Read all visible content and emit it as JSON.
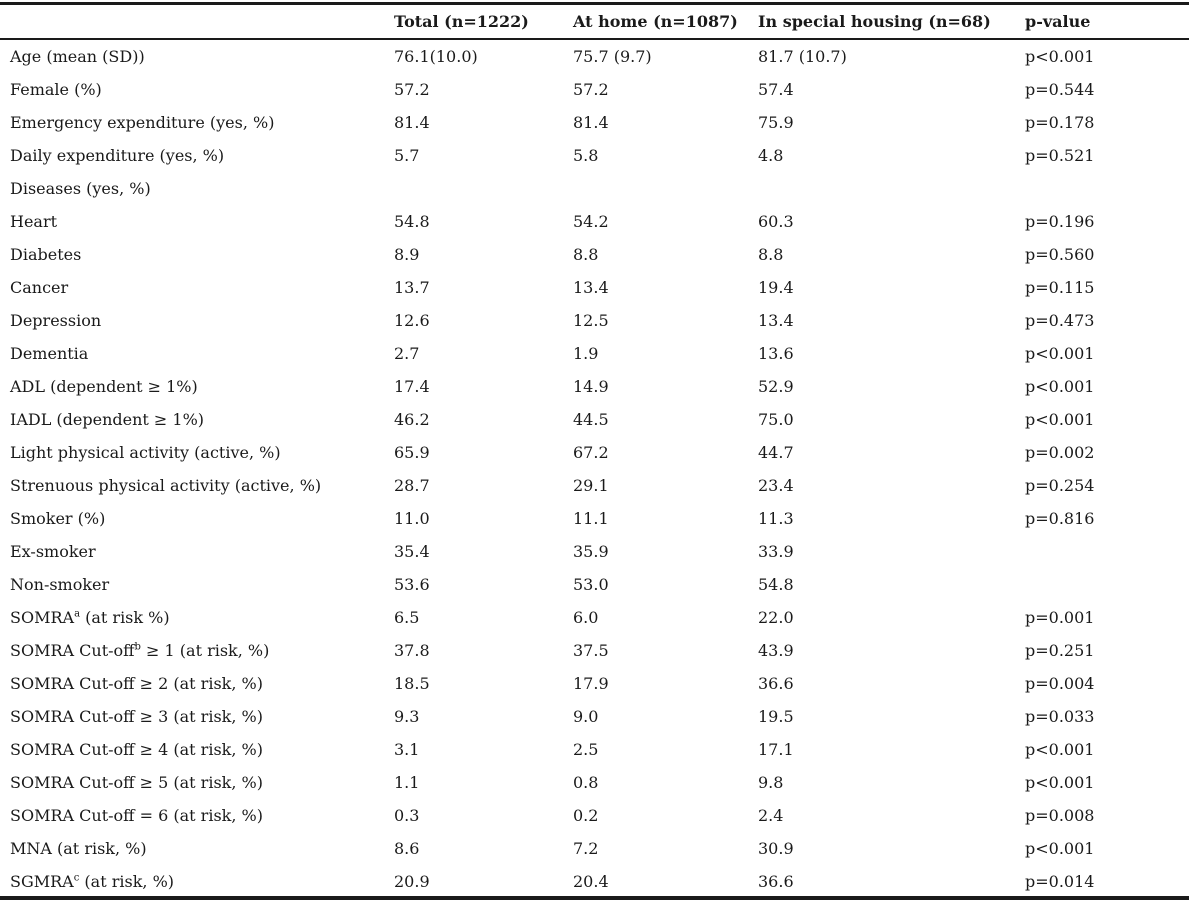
{
  "headers": [
    "",
    "Total (n=1222)",
    "At home (n=1087)",
    "In special housing (n=68)",
    "p-value"
  ],
  "rows": [
    {
      "label": "Age (mean (SD))",
      "sup": "",
      "label_rest": "",
      "total": "76.1(10.0)",
      "home": "75.7 (9.7)",
      "special": "81.7 (10.7)",
      "p": "p<0.001"
    },
    {
      "label": "Female (%)",
      "sup": "",
      "label_rest": "",
      "total": "57.2",
      "home": "57.2",
      "special": "57.4",
      "p": "p=0.544"
    },
    {
      "label": "Emergency expenditure (yes, %)",
      "sup": "",
      "label_rest": "",
      "total": "81.4",
      "home": "81.4",
      "special": "75.9",
      "p": "p=0.178"
    },
    {
      "label": "Daily expenditure (yes, %)",
      "sup": "",
      "label_rest": "",
      "total": "5.7",
      "home": "5.8",
      "special": "4.8",
      "p": "p=0.521"
    },
    {
      "label": "Diseases (yes, %)",
      "sup": "",
      "label_rest": "",
      "total": "",
      "home": "",
      "special": "",
      "p": ""
    },
    {
      "label": "Heart",
      "sup": "",
      "label_rest": "",
      "total": "54.8",
      "home": "54.2",
      "special": "60.3",
      "p": "p=0.196"
    },
    {
      "label": "Diabetes",
      "sup": "",
      "label_rest": "",
      "total": "8.9",
      "home": "8.8",
      "special": "8.8",
      "p": "p=0.560"
    },
    {
      "label": "Cancer",
      "sup": "",
      "label_rest": "",
      "total": "13.7",
      "home": "13.4",
      "special": "19.4",
      "p": "p=0.115"
    },
    {
      "label": "Depression",
      "sup": "",
      "label_rest": "",
      "total": "12.6",
      "home": "12.5",
      "special": "13.4",
      "p": "p=0.473"
    },
    {
      "label": "Dementia",
      "sup": "",
      "label_rest": "",
      "total": "2.7",
      "home": "1.9",
      "special": "13.6",
      "p": "p<0.001"
    },
    {
      "label": "ADL (dependent ≥ 1%)",
      "sup": "",
      "label_rest": "",
      "total": "17.4",
      "home": "14.9",
      "special": "52.9",
      "p": "p<0.001"
    },
    {
      "label": "IADL (dependent ≥ 1%)",
      "sup": "",
      "label_rest": "",
      "total": "46.2",
      "home": "44.5",
      "special": "75.0",
      "p": "p<0.001"
    },
    {
      "label": "Light physical activity (active, %)",
      "sup": "",
      "label_rest": "",
      "total": "65.9",
      "home": "67.2",
      "special": "44.7",
      "p": "p=0.002"
    },
    {
      "label": "Strenuous physical activity (active, %)",
      "sup": "",
      "label_rest": "",
      "total": "28.7",
      "home": "29.1",
      "special": "23.4",
      "p": "p=0.254"
    },
    {
      "label": "Smoker (%)",
      "sup": "",
      "label_rest": "",
      "total": "11.0",
      "home": "11.1",
      "special": "11.3",
      "p": "p=0.816"
    },
    {
      "label": "Ex-smoker",
      "sup": "",
      "label_rest": "",
      "total": "35.4",
      "home": "35.9",
      "special": "33.9",
      "p": ""
    },
    {
      "label": "Non-smoker",
      "sup": "",
      "label_rest": "",
      "total": "53.6",
      "home": "53.0",
      "special": "54.8",
      "p": ""
    },
    {
      "label": "SOMRA",
      "sup": "a",
      "label_rest": " (at risk %)",
      "total": "6.5",
      "home": "6.0",
      "special": "22.0",
      "p": "p=0.001"
    },
    {
      "label": "SOMRA Cut-off",
      "sup": "b",
      "label_rest": " ≥ 1 (at risk, %)",
      "total": "37.8",
      "home": "37.5",
      "special": "43.9",
      "p": "p=0.251"
    },
    {
      "label": "SOMRA Cut-off ≥ 2 (at risk, %)",
      "sup": "",
      "label_rest": "",
      "total": "18.5",
      "home": "17.9",
      "special": "36.6",
      "p": "p=0.004"
    },
    {
      "label": "SOMRA Cut-off ≥ 3 (at risk, %)",
      "sup": "",
      "label_rest": "",
      "total": "9.3",
      "home": "9.0",
      "special": "19.5",
      "p": "p=0.033"
    },
    {
      "label": "SOMRA Cut-off ≥ 4 (at risk, %)",
      "sup": "",
      "label_rest": "",
      "total": "3.1",
      "home": "2.5",
      "special": "17.1",
      "p": "p<0.001"
    },
    {
      "label": "SOMRA Cut-off ≥ 5 (at risk, %)",
      "sup": "",
      "label_rest": "",
      "total": "1.1",
      "home": "0.8",
      "special": "9.8",
      "p": "p<0.001"
    },
    {
      "label": "SOMRA Cut-off = 6 (at risk, %)",
      "sup": "",
      "label_rest": "",
      "total": "0.3",
      "home": "0.2",
      "special": "2.4",
      "p": "p=0.008"
    },
    {
      "label": "MNA (at risk, %)",
      "sup": "",
      "label_rest": "",
      "total": "8.6",
      "home": "7.2",
      "special": "30.9",
      "p": "p<0.001"
    },
    {
      "label": "SGMRA",
      "sup": "c",
      "label_rest": " (at risk, %)",
      "total": "20.9",
      "home": "20.4",
      "special": "36.6",
      "p": "p=0.014"
    }
  ]
}
